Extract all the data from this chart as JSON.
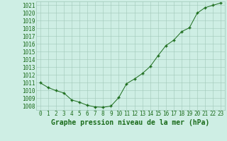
{
  "x": [
    0,
    1,
    2,
    3,
    4,
    5,
    6,
    7,
    8,
    9,
    10,
    11,
    12,
    13,
    14,
    15,
    16,
    17,
    18,
    19,
    20,
    21,
    22,
    23
  ],
  "y": [
    1011.0,
    1010.4,
    1010.0,
    1009.7,
    1008.8,
    1008.5,
    1008.1,
    1007.9,
    1007.85,
    1008.0,
    1009.1,
    1010.9,
    1011.5,
    1012.2,
    1013.1,
    1014.5,
    1015.8,
    1016.5,
    1017.6,
    1018.1,
    1020.0,
    1020.7,
    1021.0,
    1021.3
  ],
  "title": "Graphe pression niveau de la mer (hPa)",
  "ylim_min": 1007.5,
  "ylim_max": 1021.5,
  "ytick_min": 1008,
  "ytick_max": 1021,
  "xlim_min": -0.5,
  "xlim_max": 23.5,
  "line_color": "#1a6b1a",
  "marker_color": "#1a6b1a",
  "bg_color": "#ceeee4",
  "grid_color": "#a0c8b8",
  "tick_label_color": "#1a6b1a",
  "title_color": "#1a6b1a",
  "title_fontsize": 7.0,
  "tick_fontsize": 5.5
}
